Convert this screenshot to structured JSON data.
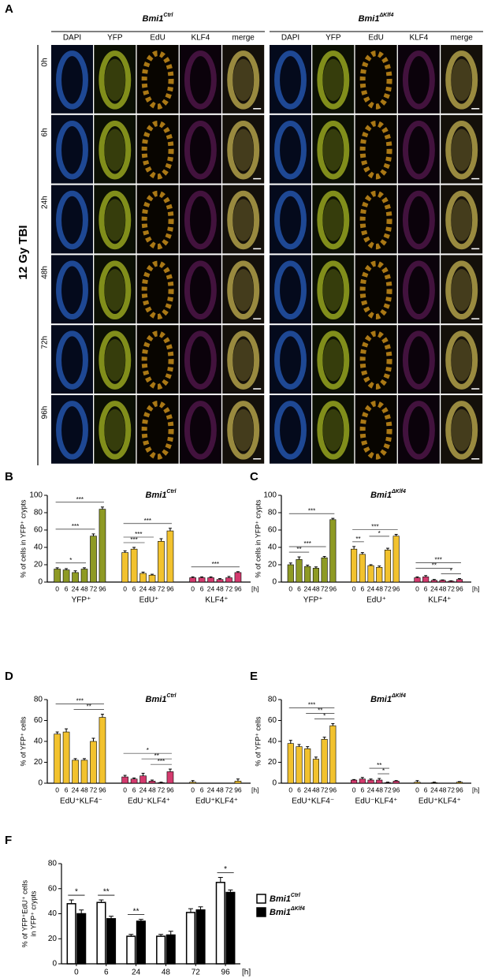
{
  "panel_a": {
    "label": "A",
    "groups": [
      {
        "base": "Bmi1",
        "sup": "Ctrl"
      },
      {
        "base": "Bmi1",
        "sup": "ΔKlf4"
      }
    ],
    "columns": [
      "DAPI",
      "YFP",
      "EdU",
      "KLF4",
      "merge"
    ],
    "rows": [
      "0h",
      "6h",
      "24h",
      "48h",
      "72h",
      "96h"
    ],
    "side_label": "12 Gy TBI"
  },
  "chart_data": [
    {
      "type": "grouped_bar",
      "panel": "B",
      "title": {
        "base": "Bmi1",
        "sup": "Ctrl"
      },
      "ylabel": "% of cells in YFP⁺ crypts",
      "ylim": [
        0,
        100
      ],
      "yticks": [
        0,
        20,
        40,
        60,
        80,
        100
      ],
      "subcategories": [
        "0",
        "6",
        "24",
        "48",
        "72",
        "96"
      ],
      "x_unit": "[h]",
      "groups": [
        {
          "label": "YFP⁺",
          "color": "#8e9a24",
          "values": [
            15,
            14,
            11,
            15,
            53,
            84
          ],
          "errors": [
            1.5,
            1.5,
            2,
            1.5,
            2.5,
            2.5
          ]
        },
        {
          "label": "EdU⁺",
          "color": "#f2c22e",
          "values": [
            34,
            38,
            10,
            8,
            47,
            59
          ],
          "errors": [
            2,
            2,
            1.5,
            1,
            3,
            3
          ]
        },
        {
          "label": "KLF4⁺",
          "color": "#d43a6e",
          "values": [
            5,
            5,
            5,
            3,
            5,
            11
          ],
          "errors": [
            1,
            1,
            1,
            1,
            1.5,
            1
          ]
        }
      ],
      "annotations": [
        {
          "text": "*",
          "group": 0,
          "from": 0,
          "to": 3
        },
        {
          "text": "***",
          "group": 0,
          "from": 0,
          "to": 4
        },
        {
          "text": "***",
          "group": 0,
          "from": 0,
          "to": 5
        },
        {
          "text": "***",
          "group": 1,
          "from": 0,
          "to": 2
        },
        {
          "text": "***",
          "group": 1,
          "from": 0,
          "to": 3
        },
        {
          "text": "***",
          "group": 1,
          "from": 0,
          "to": 5
        },
        {
          "text": "***",
          "group": 2,
          "from": 0,
          "to": 5
        }
      ]
    },
    {
      "type": "grouped_bar",
      "panel": "C",
      "title": {
        "base": "Bmi1",
        "sup": "ΔKlf4"
      },
      "ylabel": "% of cells in YFP⁺ crypts",
      "ylim": [
        0,
        100
      ],
      "yticks": [
        0,
        20,
        40,
        60,
        80,
        100
      ],
      "subcategories": [
        "0",
        "6",
        "24",
        "48",
        "72",
        "96"
      ],
      "x_unit": "[h]",
      "groups": [
        {
          "label": "YFP⁺",
          "color": "#8e9a24",
          "values": [
            20,
            26,
            18,
            16,
            28,
            72
          ],
          "errors": [
            2,
            3,
            1.5,
            1.5,
            1.5,
            1.5
          ]
        },
        {
          "label": "EdU⁺",
          "color": "#f2c22e",
          "values": [
            38,
            32,
            19,
            17,
            37,
            53
          ],
          "errors": [
            3,
            2,
            1,
            1.5,
            2,
            2
          ]
        },
        {
          "label": "KLF4⁺",
          "color": "#d43a6e",
          "values": [
            5,
            6,
            2,
            2,
            1,
            3
          ],
          "errors": [
            1,
            1.5,
            1,
            0.5,
            0.5,
            1
          ]
        }
      ],
      "annotations": [
        {
          "text": "**",
          "group": 0,
          "from": 0,
          "to": 2
        },
        {
          "text": "***",
          "group": 0,
          "from": 0,
          "to": 4
        },
        {
          "text": "***",
          "group": 0,
          "from": 0,
          "to": 5
        },
        {
          "text": "**",
          "group": 1,
          "from": 0,
          "to": 1
        },
        {
          "text": "*",
          "group": 1,
          "from": 2,
          "to": 4
        },
        {
          "text": "***",
          "group": 1,
          "from": 0,
          "to": 5
        },
        {
          "text": "*",
          "group": 2,
          "from": 3,
          "to": 5
        },
        {
          "text": "**",
          "group": 2,
          "from": 0,
          "to": 4
        },
        {
          "text": "***",
          "group": 2,
          "from": 0,
          "to": 5
        }
      ]
    },
    {
      "type": "grouped_bar",
      "panel": "D",
      "title": {
        "base": "Bmi1",
        "sup": "Ctrl"
      },
      "ylabel": "% of YFP⁺ cells",
      "ylim": [
        0,
        80
      ],
      "yticks": [
        0,
        20,
        40,
        60,
        80
      ],
      "subcategories": [
        "0",
        "6",
        "24",
        "48",
        "72",
        "96"
      ],
      "x_unit": "[h]",
      "groups": [
        {
          "label": "EdU⁺KLF4⁻",
          "color": "#f2c22e",
          "values": [
            47,
            49,
            22,
            22,
            40,
            63
          ],
          "errors": [
            2,
            3,
            1.5,
            1.5,
            3,
            3
          ]
        },
        {
          "label": "EdU⁻KLF4⁺",
          "color": "#d43a6e",
          "values": [
            6,
            4,
            7,
            2,
            0.5,
            11
          ],
          "errors": [
            1.5,
            1,
            2.5,
            1,
            0.5,
            2.5
          ]
        },
        {
          "label": "EdU⁺KLF4⁺",
          "color": "#f2c22e",
          "values": [
            1,
            0,
            0,
            0,
            0,
            2
          ],
          "errors": [
            1.5,
            0,
            0,
            0,
            0,
            2
          ]
        }
      ],
      "annotations": [
        {
          "text": "**",
          "group": 0,
          "from": 2,
          "to": 5
        },
        {
          "text": "***",
          "group": 0,
          "from": 0,
          "to": 5
        },
        {
          "text": "***",
          "group": 1,
          "from": 3,
          "to": 5
        },
        {
          "text": "**",
          "group": 1,
          "from": 2,
          "to": 5
        },
        {
          "text": "*",
          "group": 1,
          "from": 0,
          "to": 5
        }
      ]
    },
    {
      "type": "grouped_bar",
      "panel": "E",
      "title": {
        "base": "Bmi1",
        "sup": "ΔKlf4"
      },
      "ylabel": "% of YFP⁺ cells",
      "ylim": [
        0,
        80
      ],
      "yticks": [
        0,
        20,
        40,
        60,
        80
      ],
      "subcategories": [
        "0",
        "6",
        "24",
        "48",
        "72",
        "96"
      ],
      "x_unit": "[h]",
      "groups": [
        {
          "label": "EdU⁺KLF4⁻",
          "color": "#f2c22e",
          "values": [
            38,
            35,
            33,
            23,
            42,
            55
          ],
          "errors": [
            3,
            2,
            2,
            2,
            2,
            2
          ]
        },
        {
          "label": "EdU⁻KLF4⁺",
          "color": "#d43a6e",
          "values": [
            3,
            4,
            3,
            3,
            0.5,
            2
          ],
          "errors": [
            0.5,
            1.5,
            1,
            1.5,
            0.5,
            0.5
          ]
        },
        {
          "label": "EdU⁺KLF4⁺",
          "color": "#f2c22e",
          "values": [
            1,
            0,
            0.5,
            0,
            0,
            1
          ],
          "errors": [
            1.5,
            0,
            0.5,
            0,
            0,
            0.5
          ]
        }
      ],
      "annotations": [
        {
          "text": "*",
          "group": 0,
          "from": 3,
          "to": 5
        },
        {
          "text": "**",
          "group": 0,
          "from": 2,
          "to": 5
        },
        {
          "text": "***",
          "group": 0,
          "from": 0,
          "to": 5
        },
        {
          "text": "*",
          "group": 1,
          "from": 3,
          "to": 4
        },
        {
          "text": "**",
          "group": 1,
          "from": 2,
          "to": 4
        }
      ]
    },
    {
      "type": "bar",
      "panel": "F",
      "ylabel": [
        "% of YFP⁺EdU⁺ cells",
        "in YFP⁺ crypts"
      ],
      "ylim": [
        0,
        80
      ],
      "yticks": [
        0,
        20,
        40,
        60,
        80
      ],
      "categories": [
        "0",
        "6",
        "24",
        "48",
        "72",
        "96"
      ],
      "x_unit": "[h]",
      "series": [
        {
          "name": {
            "base": "Bmi1",
            "sup": "Ctrl"
          },
          "color": "#ffffff",
          "values": [
            48,
            49,
            22,
            22,
            41,
            65
          ],
          "errors": [
            3,
            2,
            1.5,
            1.5,
            3,
            4
          ]
        },
        {
          "name": {
            "base": "Bmi1",
            "sup": "ΔKlf4"
          },
          "color": "#000000",
          "values": [
            40,
            36,
            34,
            23,
            43,
            57
          ],
          "errors": [
            3,
            2,
            1.5,
            3,
            2.5,
            2
          ]
        }
      ],
      "annotations": [
        {
          "text": "*",
          "category": 0
        },
        {
          "text": "**",
          "category": 1
        },
        {
          "text": "**",
          "category": 2
        },
        {
          "text": "*",
          "category": 5
        }
      ]
    }
  ]
}
